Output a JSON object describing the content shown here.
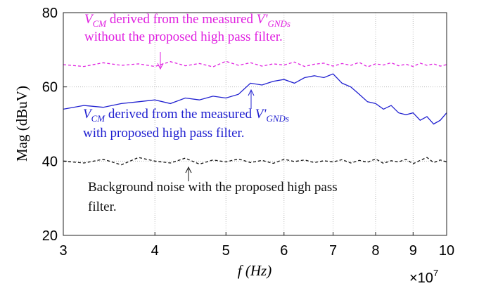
{
  "chart_data": {
    "type": "line",
    "y_label": "Mag (dBuV)",
    "x_label": "f (Hz)",
    "x_multiplier": "×10",
    "x_exponent": "7",
    "x_log": true,
    "grid": true,
    "xlim": [
      3,
      10
    ],
    "ylim": [
      20,
      80
    ],
    "xticks": [
      3,
      4,
      5,
      6,
      7,
      8,
      9,
      10
    ],
    "yticks": [
      20,
      40,
      60,
      80
    ],
    "x": [
      3,
      3.2,
      3.4,
      3.6,
      3.8,
      4,
      4.2,
      4.4,
      4.6,
      4.8,
      5,
      5.2,
      5.4,
      5.6,
      5.8,
      6,
      6.2,
      6.4,
      6.6,
      6.8,
      7,
      7.2,
      7.4,
      7.6,
      7.8,
      8,
      8.2,
      8.4,
      8.6,
      8.8,
      9,
      9.2,
      9.4,
      9.6,
      9.8,
      10
    ],
    "series": [
      {
        "color": "#e020e0",
        "dash": "4 3",
        "values": [
          66,
          65.5,
          66.5,
          65.8,
          66.2,
          65.5,
          66.8,
          65.7,
          66.3,
          65.4,
          66.9,
          65.8,
          66.5,
          65.6,
          66.2,
          65.9,
          66.7,
          65.5,
          66.1,
          66.4,
          65.6,
          66.3,
          65.8,
          66.6,
          65.4,
          66.2,
          65.9,
          66.5,
          65.7,
          66.1,
          65.5,
          66.4,
          65.8,
          66.2,
          65.6,
          66
        ]
      },
      {
        "color": "#2020d0",
        "dash": "none",
        "values": [
          54,
          55,
          54.5,
          55.5,
          56,
          56.5,
          55.5,
          57,
          56.5,
          57.5,
          57,
          58,
          61,
          60.5,
          61.5,
          62,
          61,
          62.5,
          63,
          62.5,
          63.5,
          61,
          60,
          58,
          56,
          55.5,
          54,
          55,
          53,
          52.5,
          53,
          51,
          52,
          50,
          51,
          53
        ]
      },
      {
        "color": "#111111",
        "dash": "4 3",
        "values": [
          40,
          39.5,
          40.5,
          39,
          41,
          40,
          39.5,
          40.8,
          39.2,
          40.3,
          39.8,
          40.6,
          39.6,
          40.2,
          39.4,
          40.5,
          39.9,
          40.3,
          39.6,
          40.1,
          39.8,
          40.4,
          39.5,
          40.2,
          39.7,
          40.6,
          39.4,
          40.1,
          39.8,
          40.5,
          39.3,
          40.2,
          41,
          39.6,
          40.3,
          39.8
        ]
      }
    ],
    "annotations": [
      {
        "color": "#e020e0",
        "lines": [
          [
            {
              "text": "V",
              "style": "italic"
            },
            {
              "text": "CM",
              "style": "sub"
            },
            {
              "text": " derived from the measured ",
              "style": "normal"
            },
            {
              "text": "V'",
              "style": "italic"
            },
            {
              "text": "GNDs",
              "style": "sub"
            }
          ],
          [
            {
              "text": "without the proposed high pass filter.",
              "style": "normal"
            }
          ]
        ]
      },
      {
        "color": "#2020d0",
        "lines": [
          [
            {
              "text": "V",
              "style": "italic"
            },
            {
              "text": "CM",
              "style": "sub"
            },
            {
              "text": " derived from the measured ",
              "style": "normal"
            },
            {
              "text": "V'",
              "style": "italic"
            },
            {
              "text": "GNDs",
              "style": "sub"
            }
          ],
          [
            {
              "text": "with proposed high pass filter.",
              "style": "normal"
            }
          ]
        ]
      },
      {
        "color": "#111111",
        "lines": [
          [
            {
              "text": "Background noise with the proposed high pass",
              "style": "normal"
            }
          ],
          [
            {
              "text": "filter.",
              "style": "normal"
            }
          ]
        ]
      }
    ]
  }
}
